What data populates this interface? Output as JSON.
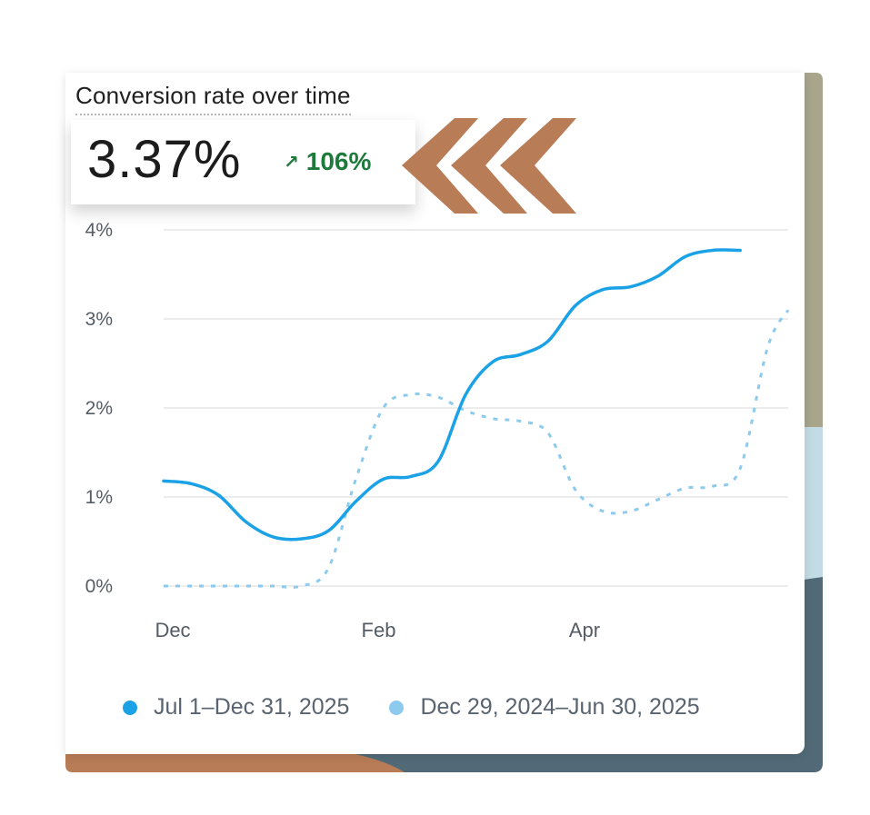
{
  "colors": {
    "primary_series": "#1ba1e6",
    "comparison_series": "#8ccaee",
    "positive_change": "#1d7a3b",
    "accent_chevrons": "#b87c56",
    "backdrop_olive": "#a8a58c",
    "backdrop_lightblue": "#c3dbe4",
    "backdrop_slate": "#526a78",
    "backdrop_copper": "#b87c56"
  },
  "header": {
    "title": "Conversion rate over time",
    "value": "3.37%",
    "change": "106%",
    "change_icon": "arrow-up-right-icon"
  },
  "chart_data": {
    "type": "line",
    "title": "Conversion rate over time",
    "xlabel": "",
    "ylabel": "",
    "ylim": [
      0,
      4
    ],
    "y_ticks": [
      "0%",
      "1%",
      "2%",
      "3%",
      "4%"
    ],
    "x_tick_labels": [
      "Dec",
      "Feb",
      "Apr"
    ],
    "grid": true,
    "legend_position": "bottom",
    "x_index": [
      0,
      8,
      16,
      24,
      32,
      40,
      48,
      56,
      64,
      72,
      80,
      88,
      96,
      104,
      112,
      120,
      128,
      136,
      144,
      152,
      160,
      168,
      176,
      182
    ],
    "x_tick_index": [
      0,
      60,
      120
    ],
    "series": [
      {
        "name": "Jul 1–Dec 31, 2025",
        "style": "solid",
        "values": [
          1.18,
          1.15,
          1.02,
          0.72,
          0.55,
          0.53,
          0.62,
          0.95,
          1.2,
          1.23,
          1.4,
          2.15,
          2.52,
          2.6,
          2.75,
          3.15,
          3.33,
          3.36,
          3.48,
          3.7,
          3.77,
          3.77,
          null,
          null
        ]
      },
      {
        "name": "Dec 29, 2024–Jun 30, 2025",
        "style": "dashed",
        "values": [
          0.0,
          0.0,
          0.0,
          0.0,
          0.0,
          0.0,
          0.2,
          1.2,
          2.0,
          2.15,
          2.12,
          1.97,
          1.88,
          1.85,
          1.72,
          1.08,
          0.84,
          0.84,
          0.97,
          1.1,
          1.12,
          1.32,
          2.68,
          3.1
        ]
      }
    ]
  }
}
